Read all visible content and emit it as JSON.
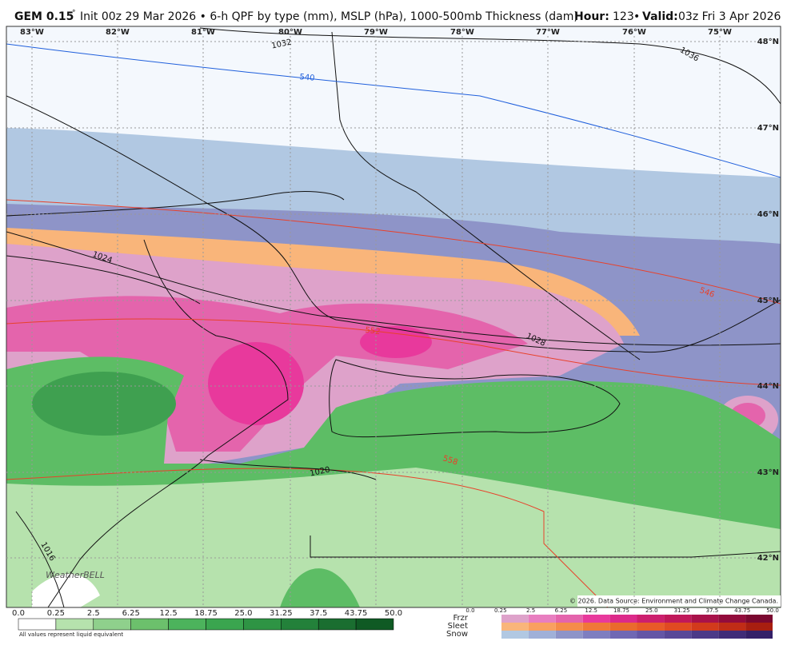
{
  "header": {
    "model": "GEM 0.15",
    "degree": "°",
    "description": "Init 00z 29 Mar 2026 • 6-h QPF by type (mm), MSLP (hPa), 1000-500mb Thickness (dam)",
    "hour_label": "Hour:",
    "hour": "123",
    "separator": "•",
    "valid_label": "Valid:",
    "valid": "03z Fri 3 Apr 2026"
  },
  "map": {
    "longitudes": [
      "83°W",
      "82°W",
      "81°W",
      "80°W",
      "79°W",
      "78°W",
      "77°W",
      "76°W",
      "75°W"
    ],
    "latitudes": [
      "48°N",
      "47°N",
      "46°N",
      "45°N",
      "44°N",
      "43°N",
      "42°N"
    ],
    "contour_labels": [
      "1032",
      "540",
      "1036",
      "1024",
      "546",
      "552",
      "1028",
      "558",
      "1020",
      "1016"
    ],
    "credit": "© 2026. Data Source: Environment and Climate Change Canada.",
    "logo": "WeatherBELL"
  },
  "legend": {
    "rain_ticks": [
      "0.0",
      "0.25",
      "2.5",
      "6.25",
      "12.5",
      "18.75",
      "25.0",
      "31.25",
      "37.5",
      "43.75",
      "50.0"
    ],
    "note": "All values represent liquid equivalent",
    "type_names": [
      "Frzr",
      "Sleet",
      "Snow"
    ],
    "type_ticks": [
      "0.0",
      "0.25",
      "2.5",
      "6.25",
      "12.5",
      "18.75",
      "25.0",
      "31.25",
      "37.5",
      "43.75",
      "50.0"
    ]
  }
}
